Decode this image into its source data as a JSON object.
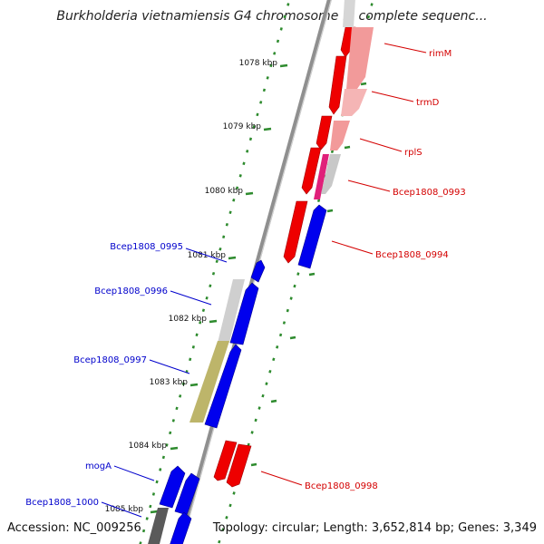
{
  "title": "Burkholderia vietnamiensis G4 chromosome 1, complete sequenc...",
  "accession": "Accession: NC_009256",
  "summary": "Topology: circular; Length: 3,652,814 bp; Genes: 3,349",
  "colors": {
    "backbone": "#8a8a8a",
    "tick": "#2e8b2e",
    "forward_label": "#d40000",
    "reverse_label": "#0000cc"
  },
  "ticks": [
    "1078 kbp",
    "1079 kbp",
    "1080 kbp",
    "1081 kbp",
    "1082 kbp",
    "1083 kbp",
    "1084 kbp",
    "1085 kbp"
  ],
  "forward_genes": [
    "rimM",
    "trmD",
    "rplS",
    "Bcep1808_0993",
    "Bcep1808_0994",
    "Bcep1808_0998"
  ],
  "reverse_genes": [
    "Bcep1808_0995",
    "Bcep1808_0996",
    "Bcep1808_0997",
    "mogA",
    "Bcep1808_1000"
  ]
}
